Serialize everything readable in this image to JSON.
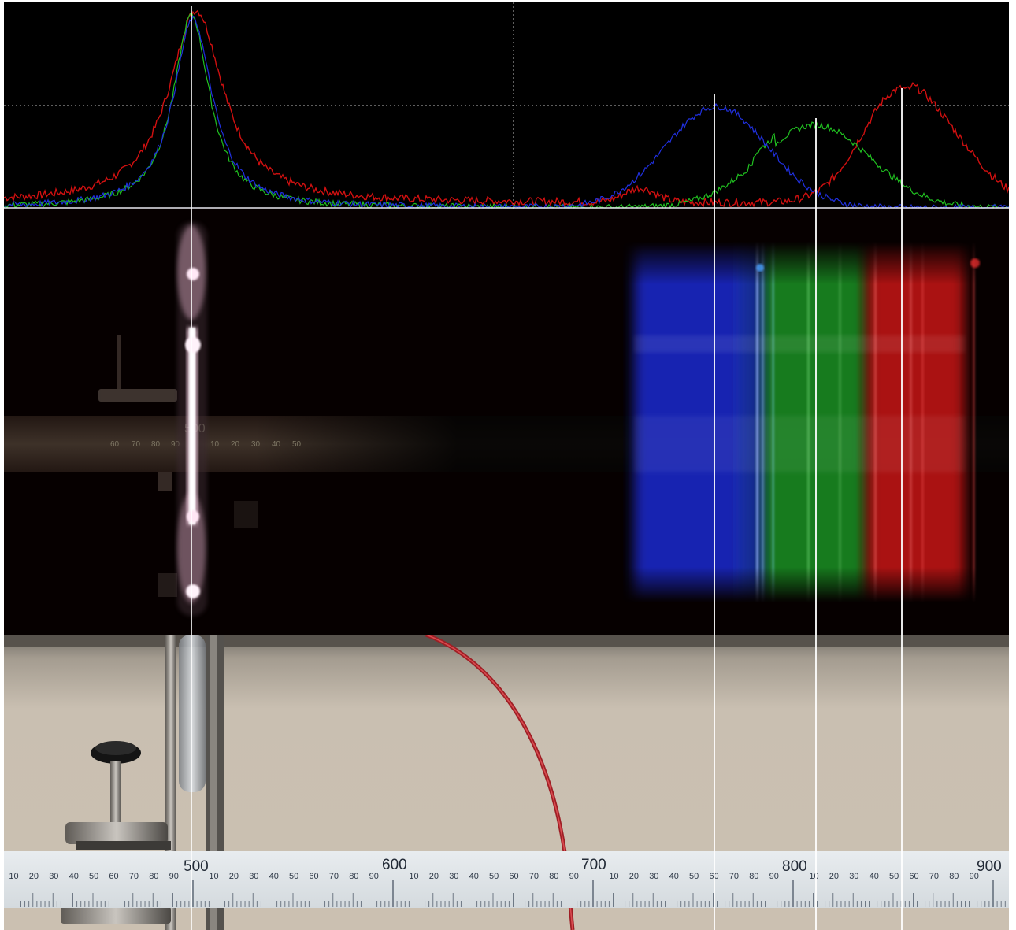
{
  "scene": {
    "description_free": true,
    "colors": {
      "red_channel": "#d01010",
      "green_channel": "#20c020",
      "blue_channel": "#2030e0",
      "marker_line": "#ffffff",
      "grid_dotted": "#c8c8c8",
      "cable": "#c0282c"
    }
  },
  "profile": {
    "channels": [
      "red",
      "green",
      "blue"
    ]
  },
  "spectrum_ruler": {
    "major_label": "500",
    "minor_labels_left": [
      "60",
      "70",
      "80",
      "90"
    ],
    "minor_labels_right": [
      "10",
      "20",
      "30",
      "40",
      "50"
    ]
  },
  "bottom_ruler": {
    "major_labels": [
      "500",
      "600",
      "700",
      "800",
      "900"
    ],
    "minor_labels": [
      "10",
      "20",
      "30",
      "40",
      "50",
      "60",
      "70",
      "80",
      "90"
    ]
  }
}
